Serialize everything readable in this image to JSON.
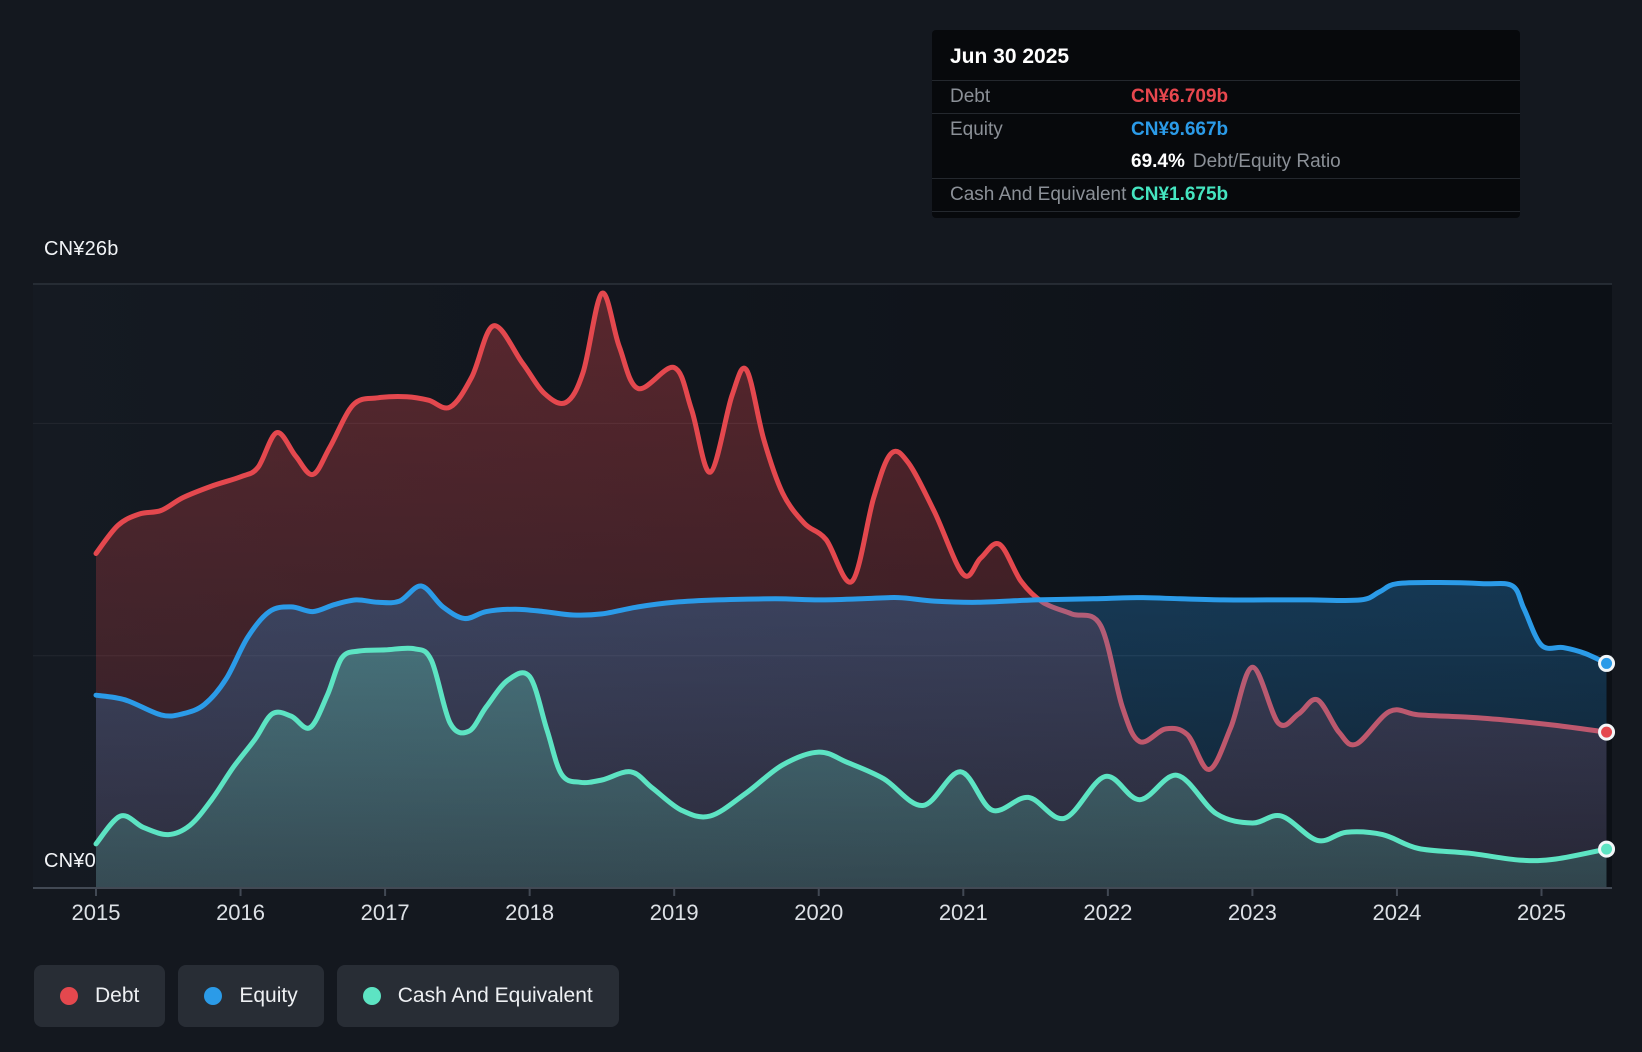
{
  "tooltip": {
    "date": "Jun 30 2025",
    "rows": [
      {
        "label": "Debt",
        "value": "CN¥6.709b"
      },
      {
        "label": "Equity",
        "value": "CN¥9.667b"
      },
      {
        "label": "Cash And Equivalent",
        "value": "CN¥1.675b"
      }
    ],
    "ratio_value": "69.4%",
    "ratio_label": "Debt/Equity Ratio"
  },
  "legend": {
    "items": [
      {
        "label": "Debt"
      },
      {
        "label": "Equity"
      },
      {
        "label": "Cash And Equivalent"
      }
    ]
  },
  "colors": {
    "debt": "#e4484e",
    "equity": "#2b9be8",
    "cash": "#5de4c3",
    "page_bg": "#14181f",
    "tooltip_bg": "#07090c",
    "legend_bg": "#282d35",
    "grid": "#23272f",
    "axis": "#424954"
  },
  "chart_data": {
    "type": "area",
    "x_ticks": [
      2015,
      2016,
      2017,
      2018,
      2019,
      2020,
      2021,
      2022,
      2023,
      2024,
      2025
    ],
    "x_range": [
      2015,
      2025.45
    ],
    "ylim": [
      0,
      26
    ],
    "y_gridlines": [
      10,
      20
    ],
    "y_axis_max_label": "CN¥26b",
    "y_axis_zero_label": "CN¥0",
    "currency_unit": "CN¥ billions",
    "series": [
      {
        "id": "debt",
        "name": "Debt",
        "color": "#e4484e",
        "points": [
          [
            2015.0,
            14.4
          ],
          [
            2015.15,
            15.6
          ],
          [
            2015.3,
            16.1
          ],
          [
            2015.45,
            16.25
          ],
          [
            2015.6,
            16.8
          ],
          [
            2015.8,
            17.3
          ],
          [
            2016.0,
            17.7
          ],
          [
            2016.12,
            18.1
          ],
          [
            2016.25,
            19.6
          ],
          [
            2016.38,
            18.6
          ],
          [
            2016.5,
            17.8
          ],
          [
            2016.62,
            19.0
          ],
          [
            2016.78,
            20.8
          ],
          [
            2016.95,
            21.1
          ],
          [
            2017.15,
            21.15
          ],
          [
            2017.3,
            21.0
          ],
          [
            2017.45,
            20.7
          ],
          [
            2017.6,
            22.0
          ],
          [
            2017.75,
            24.2
          ],
          [
            2017.95,
            22.6
          ],
          [
            2018.1,
            21.3
          ],
          [
            2018.25,
            20.9
          ],
          [
            2018.37,
            22.2
          ],
          [
            2018.5,
            25.6
          ],
          [
            2018.62,
            23.3
          ],
          [
            2018.75,
            21.5
          ],
          [
            2019.0,
            22.4
          ],
          [
            2019.12,
            20.6
          ],
          [
            2019.25,
            17.9
          ],
          [
            2019.4,
            21.2
          ],
          [
            2019.5,
            22.3
          ],
          [
            2019.62,
            19.3
          ],
          [
            2019.75,
            17.0
          ],
          [
            2019.9,
            15.7
          ],
          [
            2020.05,
            15.0
          ],
          [
            2020.23,
            13.2
          ],
          [
            2020.38,
            16.8
          ],
          [
            2020.5,
            18.7
          ],
          [
            2020.62,
            18.3
          ],
          [
            2020.8,
            16.2
          ],
          [
            2021.0,
            13.5
          ],
          [
            2021.12,
            14.2
          ],
          [
            2021.25,
            14.8
          ],
          [
            2021.4,
            13.2
          ],
          [
            2021.55,
            12.3
          ],
          [
            2021.75,
            11.8
          ],
          [
            2021.95,
            11.3
          ],
          [
            2022.1,
            7.8
          ],
          [
            2022.22,
            6.3
          ],
          [
            2022.4,
            6.85
          ],
          [
            2022.55,
            6.6
          ],
          [
            2022.7,
            5.1
          ],
          [
            2022.85,
            6.9
          ],
          [
            2023.0,
            9.5
          ],
          [
            2023.18,
            7.1
          ],
          [
            2023.32,
            7.5
          ],
          [
            2023.45,
            8.1
          ],
          [
            2023.6,
            6.7
          ],
          [
            2023.72,
            6.2
          ],
          [
            2023.95,
            7.6
          ],
          [
            2024.15,
            7.45
          ],
          [
            2024.5,
            7.35
          ],
          [
            2024.8,
            7.2
          ],
          [
            2025.1,
            7.0
          ],
          [
            2025.45,
            6.709
          ]
        ]
      },
      {
        "id": "equity",
        "name": "Equity",
        "color": "#2b9be8",
        "points": [
          [
            2015.0,
            8.3
          ],
          [
            2015.2,
            8.1
          ],
          [
            2015.45,
            7.45
          ],
          [
            2015.6,
            7.5
          ],
          [
            2015.75,
            7.9
          ],
          [
            2015.9,
            9.0
          ],
          [
            2016.05,
            10.8
          ],
          [
            2016.2,
            11.9
          ],
          [
            2016.35,
            12.1
          ],
          [
            2016.5,
            11.9
          ],
          [
            2016.65,
            12.2
          ],
          [
            2016.8,
            12.4
          ],
          [
            2016.95,
            12.3
          ],
          [
            2017.1,
            12.35
          ],
          [
            2017.25,
            13.0
          ],
          [
            2017.4,
            12.1
          ],
          [
            2017.55,
            11.6
          ],
          [
            2017.7,
            11.9
          ],
          [
            2017.9,
            12.0
          ],
          [
            2018.1,
            11.9
          ],
          [
            2018.3,
            11.75
          ],
          [
            2018.5,
            11.8
          ],
          [
            2018.75,
            12.1
          ],
          [
            2019.0,
            12.3
          ],
          [
            2019.3,
            12.4
          ],
          [
            2019.7,
            12.45
          ],
          [
            2020.0,
            12.4
          ],
          [
            2020.3,
            12.45
          ],
          [
            2020.55,
            12.5
          ],
          [
            2020.8,
            12.35
          ],
          [
            2021.1,
            12.3
          ],
          [
            2021.5,
            12.4
          ],
          [
            2021.9,
            12.45
          ],
          [
            2022.2,
            12.5
          ],
          [
            2022.5,
            12.45
          ],
          [
            2022.8,
            12.4
          ],
          [
            2023.1,
            12.4
          ],
          [
            2023.4,
            12.4
          ],
          [
            2023.75,
            12.4
          ],
          [
            2023.88,
            12.75
          ],
          [
            2024.0,
            13.1
          ],
          [
            2024.3,
            13.15
          ],
          [
            2024.6,
            13.1
          ],
          [
            2024.8,
            13.0
          ],
          [
            2024.88,
            12.0
          ],
          [
            2025.0,
            10.45
          ],
          [
            2025.15,
            10.35
          ],
          [
            2025.3,
            10.1
          ],
          [
            2025.45,
            9.667
          ]
        ]
      },
      {
        "id": "cash",
        "name": "Cash And Equivalent",
        "color": "#5de4c3",
        "points": [
          [
            2015.0,
            1.9
          ],
          [
            2015.17,
            3.1
          ],
          [
            2015.33,
            2.6
          ],
          [
            2015.5,
            2.3
          ],
          [
            2015.65,
            2.7
          ],
          [
            2015.8,
            3.8
          ],
          [
            2015.95,
            5.2
          ],
          [
            2016.1,
            6.4
          ],
          [
            2016.22,
            7.5
          ],
          [
            2016.35,
            7.4
          ],
          [
            2016.48,
            6.9
          ],
          [
            2016.6,
            8.3
          ],
          [
            2016.7,
            9.9
          ],
          [
            2016.82,
            10.2
          ],
          [
            2017.0,
            10.25
          ],
          [
            2017.2,
            10.3
          ],
          [
            2017.32,
            9.8
          ],
          [
            2017.45,
            7.1
          ],
          [
            2017.58,
            6.75
          ],
          [
            2017.7,
            7.8
          ],
          [
            2017.85,
            8.95
          ],
          [
            2018.0,
            9.1
          ],
          [
            2018.12,
            6.8
          ],
          [
            2018.22,
            4.9
          ],
          [
            2018.35,
            4.55
          ],
          [
            2018.5,
            4.65
          ],
          [
            2018.7,
            5.0
          ],
          [
            2018.85,
            4.3
          ],
          [
            2019.05,
            3.35
          ],
          [
            2019.25,
            3.1
          ],
          [
            2019.5,
            4.1
          ],
          [
            2019.75,
            5.3
          ],
          [
            2020.0,
            5.85
          ],
          [
            2020.2,
            5.4
          ],
          [
            2020.45,
            4.7
          ],
          [
            2020.72,
            3.55
          ],
          [
            2020.98,
            5.0
          ],
          [
            2021.2,
            3.35
          ],
          [
            2021.45,
            3.9
          ],
          [
            2021.7,
            3.0
          ],
          [
            2021.98,
            4.8
          ],
          [
            2022.22,
            3.8
          ],
          [
            2022.48,
            4.85
          ],
          [
            2022.75,
            3.2
          ],
          [
            2023.0,
            2.8
          ],
          [
            2023.2,
            3.1
          ],
          [
            2023.45,
            2.05
          ],
          [
            2023.65,
            2.4
          ],
          [
            2023.9,
            2.3
          ],
          [
            2024.15,
            1.7
          ],
          [
            2024.5,
            1.5
          ],
          [
            2024.85,
            1.2
          ],
          [
            2025.1,
            1.25
          ],
          [
            2025.45,
            1.675
          ]
        ]
      }
    ]
  }
}
